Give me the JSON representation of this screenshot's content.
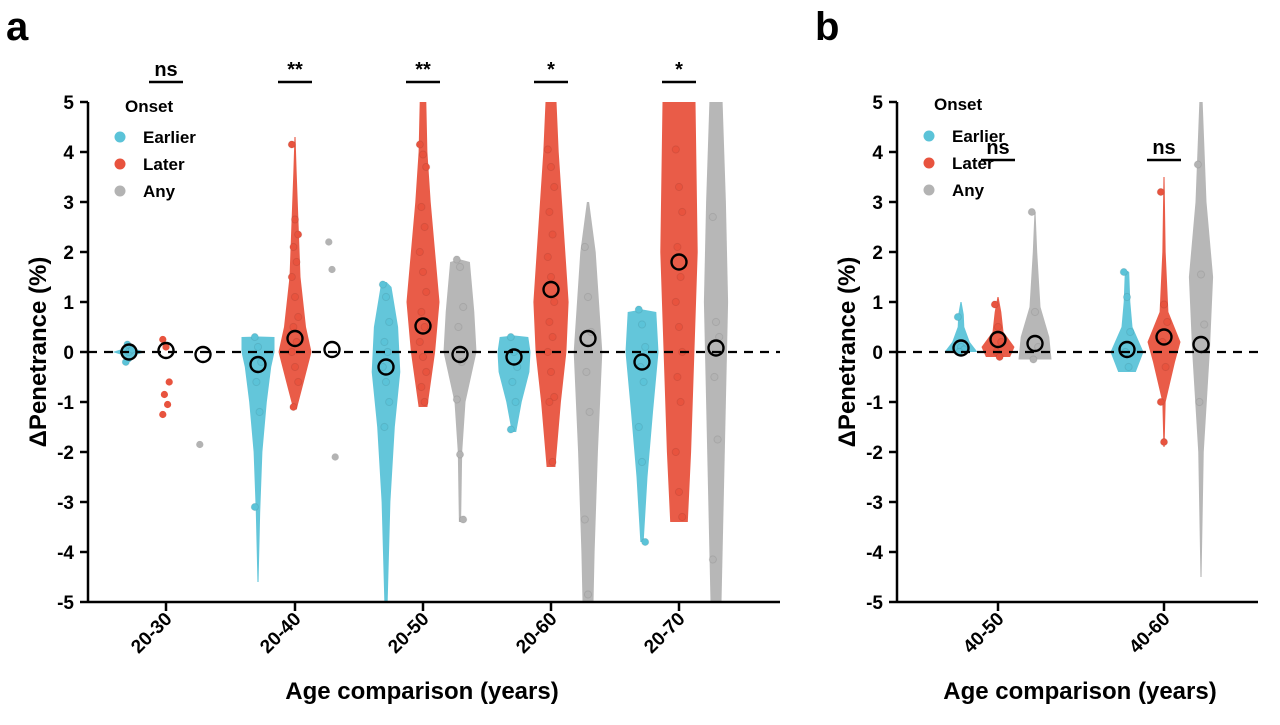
{
  "colors": {
    "earlier": "#5bc3d8",
    "later": "#e8533e",
    "any": "#b3b3b3"
  },
  "panels": [
    {
      "letter": "a",
      "chart_data": {
        "type": "violin",
        "ylabel": "ΔPenetrance (%)",
        "xlabel": "Age comparison (years)",
        "ylim": [
          -5,
          5
        ],
        "yticks": [
          "-5",
          "-4",
          "-3",
          "-2",
          "-1",
          "0",
          "1",
          "2",
          "3",
          "4",
          "5"
        ],
        "reference_line": 0,
        "legend": {
          "title": "Onset",
          "position": "top-left",
          "entries": [
            "Earlier",
            "Later",
            "Any"
          ]
        },
        "categories": [
          "20-30",
          "20-40",
          "20-50",
          "20-60",
          "20-70"
        ],
        "groups": [
          {
            "category": "20-30",
            "significance": "ns",
            "earlier": {
              "median": 0.0,
              "violin": [
                [
                  -0.2,
                  0.02
                ],
                [
                  -0.05,
                  0.15
                ],
                [
                  0,
                  0.3
                ],
                [
                  0.05,
                  0.15
                ],
                [
                  0.15,
                  0.02
                ]
              ],
              "points": [
                -0.2,
                0,
                0.05,
                0.15
              ]
            },
            "later": {
              "median": 0.03,
              "violin": [],
              "points": [
                0.25,
                0.1,
                -0.6,
                -0.85,
                -1.05,
                -1.25
              ]
            },
            "any": {
              "median": -0.05,
              "violin": [],
              "points": [
                -1.85
              ]
            }
          },
          {
            "category": "20-40",
            "significance": "**",
            "earlier": {
              "median": -0.25,
              "violin": [
                [
                  -4.6,
                  0.01
                ],
                [
                  -3.2,
                  0.04
                ],
                [
                  -2,
                  0.08
                ],
                [
                  -1,
                  0.16
                ],
                [
                  -0.3,
                  0.24
                ],
                [
                  0,
                  0.3
                ],
                [
                  0.3,
                  0.3
                ],
                [
                  0.31,
                  0.01
                ]
              ],
              "points": [
                0.3,
                0.1,
                -0.2,
                -0.6,
                -1.2,
                -3.1
              ]
            },
            "later": {
              "median": 0.27,
              "violin": [
                [
                  -1.15,
                  0.03
                ],
                [
                  -0.6,
                  0.16
                ],
                [
                  0,
                  0.3
                ],
                [
                  0.5,
                  0.2
                ],
                [
                  1.5,
                  0.1
                ],
                [
                  2.7,
                  0.06
                ],
                [
                  3.6,
                  0.03
                ],
                [
                  4.3,
                  0.01
                ]
              ],
              "points": [
                4.15,
                2.65,
                2.35,
                2.1,
                1.8,
                1.5,
                1.1,
                0.7,
                0.5,
                0.2,
                0,
                -0.3,
                -0.6,
                -1.1
              ]
            },
            "any": {
              "median": 0.05,
              "violin": [],
              "points": [
                2.2,
                1.65,
                -2.1
              ]
            }
          },
          {
            "category": "20-50",
            "significance": "**",
            "earlier": {
              "median": -0.3,
              "violin": [
                [
                  -5,
                  0.03
                ],
                [
                  -3,
                  0.08
                ],
                [
                  -1.5,
                  0.16
                ],
                [
                  -0.4,
                  0.26
                ],
                [
                  0.5,
                  0.22
                ],
                [
                  1.3,
                  0.1
                ],
                [
                  1.4,
                  0.01
                ]
              ],
              "points": [
                1.35,
                1.1,
                0.6,
                0.2,
                0,
                -0.3,
                -0.6,
                -1,
                -1.5
              ]
            },
            "later": {
              "median": 0.52,
              "violin": [
                [
                  -1.1,
                  0.08
                ],
                [
                  0,
                  0.22
                ],
                [
                  1,
                  0.3
                ],
                [
                  2,
                  0.22
                ],
                [
                  3,
                  0.14
                ],
                [
                  4,
                  0.08
                ],
                [
                  5,
                  0.06
                ]
              ],
              "points": [
                4.15,
                3.95,
                3.7,
                2.9,
                2.5,
                2,
                1.6,
                1.2,
                0.8,
                0.5,
                0.2,
                -0.1,
                -0.4,
                -0.7,
                -1
              ]
            },
            "any": {
              "median": -0.05,
              "violin": [
                [
                  -3.4,
                  0.02
                ],
                [
                  -2,
                  0.04
                ],
                [
                  -1,
                  0.1
                ],
                [
                  0,
                  0.3
                ],
                [
                  0.8,
                  0.26
                ],
                [
                  1.8,
                  0.18
                ],
                [
                  1.85,
                  0.01
                ]
              ],
              "points": [
                1.85,
                1.7,
                0.9,
                0.5,
                -0.2,
                -0.95,
                -2.05,
                -3.35
              ]
            }
          },
          {
            "category": "20-60",
            "significance": "*",
            "earlier": {
              "median": -0.1,
              "violin": [
                [
                  -1.6,
                  0.04
                ],
                [
                  -1,
                  0.14
                ],
                [
                  -0.4,
                  0.28
                ],
                [
                  0,
                  0.3
                ],
                [
                  0.3,
                  0.26
                ],
                [
                  0.33,
                  0.01
                ]
              ],
              "points": [
                0.3,
                0,
                -0.3,
                -0.6,
                -1,
                -1.55
              ]
            },
            "later": {
              "median": 1.25,
              "violin": [
                [
                  -2.3,
                  0.08
                ],
                [
                  -1,
                  0.18
                ],
                [
                  0,
                  0.28
                ],
                [
                  1,
                  0.32
                ],
                [
                  2,
                  0.26
                ],
                [
                  3,
                  0.2
                ],
                [
                  4,
                  0.14
                ],
                [
                  5,
                  0.1
                ]
              ],
              "points": [
                4.05,
                3.7,
                3.3,
                2.8,
                2.35,
                1.9,
                1.5,
                1,
                0.6,
                0.3,
                0,
                -0.4,
                -0.9,
                -1,
                -2.2
              ]
            },
            "any": {
              "median": 0.27,
              "violin": [
                [
                  -5,
                  0.1
                ],
                [
                  -4,
                  0.12
                ],
                [
                  -2,
                  0.18
                ],
                [
                  0,
                  0.26
                ],
                [
                  2,
                  0.14
                ],
                [
                  3,
                  0.02
                ]
              ],
              "points": [
                2.1,
                1.1,
                0.4,
                -0.4,
                -1.2,
                -3.35,
                -4.85
              ]
            }
          },
          {
            "category": "20-70",
            "significance": "*",
            "earlier": {
              "median": -0.2,
              "violin": [
                [
                  -3.8,
                  0.03
                ],
                [
                  -2.5,
                  0.1
                ],
                [
                  -1.2,
                  0.2
                ],
                [
                  0,
                  0.3
                ],
                [
                  0.8,
                  0.26
                ],
                [
                  0.85,
                  0.01
                ]
              ],
              "points": [
                0.85,
                0.55,
                0.1,
                -0.3,
                -0.6,
                -1.5,
                -2.2,
                -3.8
              ]
            },
            "later": {
              "median": 1.8,
              "violin": [
                [
                  -3.4,
                  0.16
                ],
                [
                  -2,
                  0.22
                ],
                [
                  0,
                  0.28
                ],
                [
                  2,
                  0.34
                ],
                [
                  3.5,
                  0.32
                ],
                [
                  5,
                  0.3
                ]
              ],
              "points": [
                4.05,
                3.3,
                2.8,
                2.1,
                1.5,
                1,
                0.5,
                0,
                -0.5,
                -1,
                -2,
                -2.8,
                -3.3
              ]
            },
            "any": {
              "median": 0.08,
              "violin": [
                [
                  -5,
                  0.1
                ],
                [
                  -3,
                  0.14
                ],
                [
                  -1,
                  0.18
                ],
                [
                  1,
                  0.22
                ],
                [
                  3,
                  0.18
                ],
                [
                  5,
                  0.12
                ]
              ],
              "points": [
                2.7,
                0.6,
                0.3,
                -0.5,
                -1.75,
                -4.15
              ]
            }
          }
        ]
      }
    },
    {
      "letter": "b",
      "chart_data": {
        "type": "violin",
        "ylabel": "ΔPenetrance (%)",
        "xlabel": "Age comparison (years)",
        "ylim": [
          -5,
          5
        ],
        "yticks": [
          "-5",
          "-4",
          "-3",
          "-2",
          "-1",
          "0",
          "1",
          "2",
          "3",
          "4",
          "5"
        ],
        "reference_line": 0,
        "legend": {
          "title": "Onset",
          "position": "top-left",
          "entries": [
            "Earlier",
            "Later",
            "Any"
          ]
        },
        "categories": [
          "40-50",
          "40-60"
        ],
        "groups": [
          {
            "category": "40-50",
            "significance": "ns",
            "earlier": {
              "median": 0.08,
              "violin": [
                [
                  0,
                  0.3
                ],
                [
                  0.2,
                  0.16
                ],
                [
                  0.5,
                  0.06
                ],
                [
                  0.75,
                  0.05
                ],
                [
                  1,
                  0.01
                ]
              ],
              "points": [
                0.7,
                0.1,
                0.05,
                0
              ]
            },
            "later": {
              "median": 0.25,
              "violin": [
                [
                  -0.1,
                  0.22
                ],
                [
                  0.1,
                  0.3
                ],
                [
                  0.4,
                  0.1
                ],
                [
                  0.8,
                  0.06
                ],
                [
                  1.1,
                  0.01
                ]
              ],
              "points": [
                0.95,
                0.5,
                0.2,
                0,
                -0.1
              ]
            },
            "any": {
              "median": 0.17,
              "violin": [
                [
                  -0.15,
                  0.3
                ],
                [
                  0.3,
                  0.26
                ],
                [
                  0.9,
                  0.1
                ],
                [
                  2,
                  0.04
                ],
                [
                  2.8,
                  0.01
                ]
              ],
              "points": [
                2.8,
                0.8,
                0.1,
                -0.15
              ]
            }
          },
          {
            "category": "40-60",
            "significance": "ns",
            "earlier": {
              "median": 0.05,
              "violin": [
                [
                  -0.4,
                  0.16
                ],
                [
                  0,
                  0.3
                ],
                [
                  0.5,
                  0.1
                ],
                [
                  1,
                  0.06
                ],
                [
                  1.6,
                  0.04
                ],
                [
                  1.62,
                  0.01
                ]
              ],
              "points": [
                1.6,
                1.1,
                0.4,
                0,
                -0.3
              ]
            },
            "later": {
              "median": 0.3,
              "violin": [
                [
                  -1.9,
                  0.01
                ],
                [
                  -1,
                  0.03
                ],
                [
                  -0.2,
                  0.2
                ],
                [
                  0.2,
                  0.3
                ],
                [
                  0.8,
                  0.08
                ],
                [
                  2,
                  0.03
                ],
                [
                  3.5,
                  0.01
                ]
              ],
              "points": [
                3.2,
                0.95,
                0.6,
                0.2,
                -0.3,
                -1,
                -1.8
              ]
            },
            "any": {
              "median": 0.15,
              "violin": [
                [
                  -4.5,
                  0.01
                ],
                [
                  -2,
                  0.05
                ],
                [
                  0,
                  0.16
                ],
                [
                  1.5,
                  0.22
                ],
                [
                  3,
                  0.1
                ],
                [
                  5,
                  0.03
                ]
              ],
              "points": [
                3.75,
                1.55,
                0.55,
                -1
              ]
            }
          }
        ]
      }
    }
  ]
}
